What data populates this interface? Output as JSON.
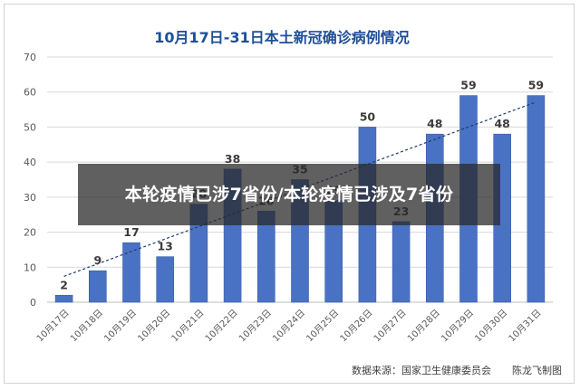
{
  "overlay": {
    "text": "本轮疫情已涉7省份/本轮疫情已涉及7省份"
  },
  "chart_data": {
    "type": "bar",
    "title": "10月17日-31日本土新冠确诊病例情况",
    "categories": [
      "10月17日",
      "10月18日",
      "10月19日",
      "10月20日",
      "10月21日",
      "10月22日",
      "10月23日",
      "10月24日",
      "10月25日",
      "10月26日",
      "10月27日",
      "10月28日",
      "10月29日",
      "10月30日",
      "10月31日"
    ],
    "values": [
      2,
      9,
      17,
      13,
      28,
      38,
      26,
      35,
      29,
      50,
      23,
      48,
      59,
      48,
      59
    ],
    "ylim": [
      0,
      70
    ],
    "yticks": [
      0,
      10,
      20,
      30,
      40,
      50,
      60,
      70
    ],
    "trendline": true,
    "grid": true,
    "source": "数据来源：国家卫生健康委员会",
    "credit": "陈龙飞制图",
    "colors": {
      "bar": "#4a72c4",
      "bar_edge": "#3a5fa8",
      "title": "#1f4e9a",
      "trend": "#1f3a6e",
      "grid": "#d9d9d9",
      "axis_text": "#595959",
      "label": "#3b3b3b"
    }
  }
}
